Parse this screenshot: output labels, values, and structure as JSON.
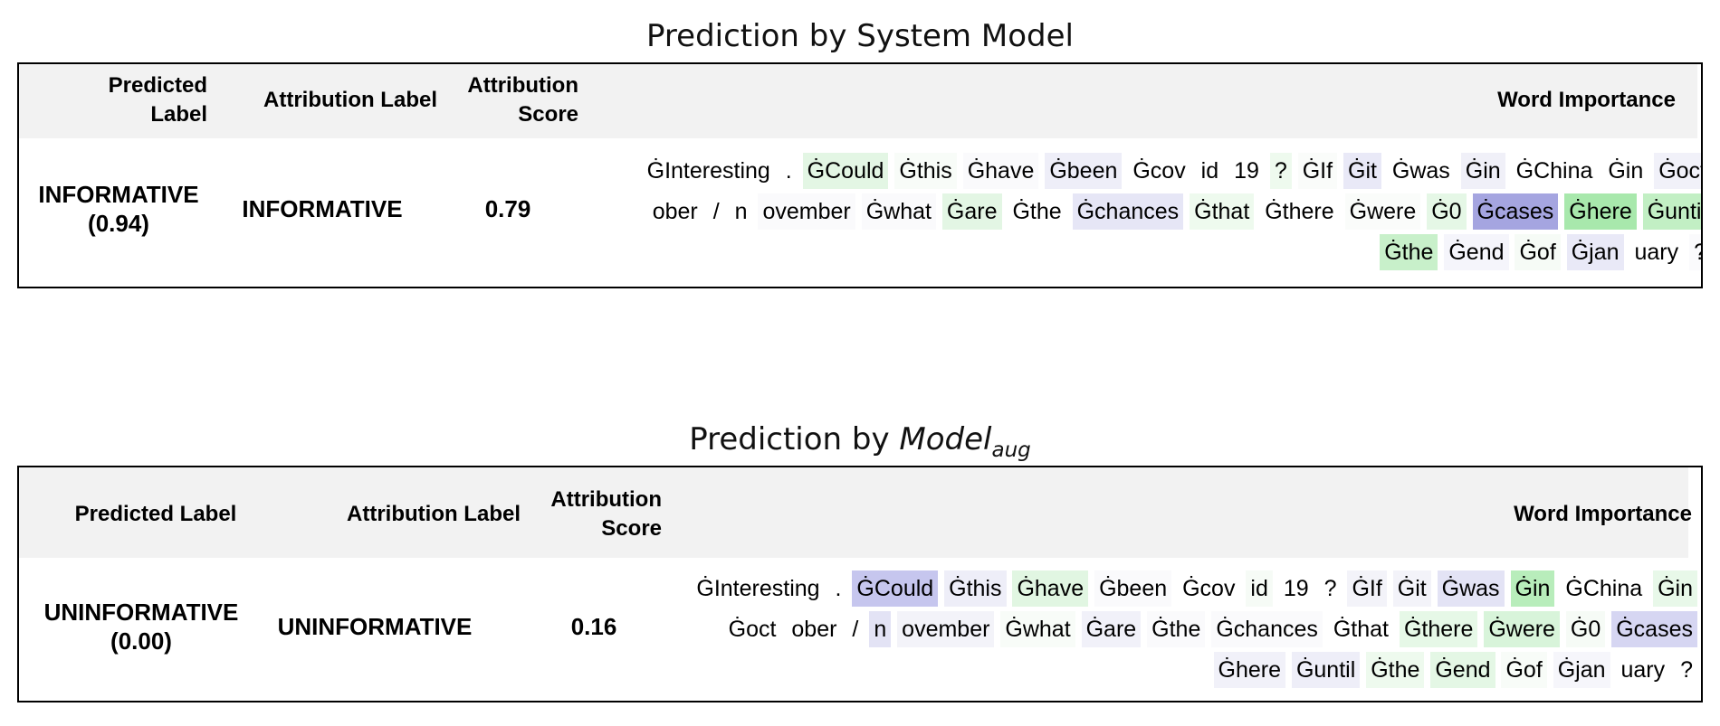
{
  "panels": [
    {
      "title_prefix": "Prediction by",
      "title_main": "System Model",
      "title_sub": "",
      "headers": {
        "predicted_label": "Predicted Label",
        "attribution_label": "Attribution Label",
        "attribution_score": "Attribution Score",
        "word_importance": "Word Importance"
      },
      "row": {
        "predicted_label": "INFORMATIVE",
        "predicted_prob": "(0.94)",
        "attribution_label": "INFORMATIVE",
        "attribution_score": "0.79"
      },
      "tokens": [
        {
          "text": "ĠInteresting",
          "color": "#ffffff"
        },
        {
          "text": ".",
          "color": "#ffffff"
        },
        {
          "text": "ĠCould",
          "color": "#e3f6e4"
        },
        {
          "text": "Ġthis",
          "color": "#f8fcf8"
        },
        {
          "text": "Ġhave",
          "color": "#fafafc"
        },
        {
          "text": "Ġbeen",
          "color": "#eeeef8"
        },
        {
          "text": "Ġcov",
          "color": "#ffffff"
        },
        {
          "text": "id",
          "color": "#ffffff"
        },
        {
          "text": "19",
          "color": "#ffffff"
        },
        {
          "text": "?",
          "color": "#eefaee"
        },
        {
          "text": "ĠIf",
          "color": "#fafcfa"
        },
        {
          "text": "Ġit",
          "color": "#e9e9f7"
        },
        {
          "text": "Ġwas",
          "color": "#ffffff"
        },
        {
          "text": "Ġin",
          "color": "#f0f0f8"
        },
        {
          "text": "ĠChina",
          "color": "#ffffff"
        },
        {
          "text": "Ġin",
          "color": "#ffffff"
        },
        {
          "text": "Ġoct",
          "color": "#f1f1f9"
        },
        {
          "text": "ober",
          "color": "#ffffff"
        },
        {
          "text": "/",
          "color": "#ffffff"
        },
        {
          "text": "n",
          "color": "#ffffff"
        },
        {
          "text": "ovember",
          "color": "#fafafc"
        },
        {
          "text": "Ġwhat",
          "color": "#fafafc"
        },
        {
          "text": "Ġare",
          "color": "#e3f6e4"
        },
        {
          "text": "Ġthe",
          "color": "#ffffff"
        },
        {
          "text": "Ġchances",
          "color": "#e6e6f6"
        },
        {
          "text": "Ġthat",
          "color": "#eefaee"
        },
        {
          "text": "Ġthere",
          "color": "#ffffff"
        },
        {
          "text": "Ġwere",
          "color": "#fafcfa"
        },
        {
          "text": "Ġ0",
          "color": "#e5f7e6"
        },
        {
          "text": "Ġcases",
          "color": "#a5a5e0"
        },
        {
          "text": "Ġhere",
          "color": "#a8e8ac"
        },
        {
          "text": "Ġuntil",
          "color": "#c2efc4"
        },
        {
          "text": "Ġthe",
          "color": "#c8f0ca"
        },
        {
          "text": "Ġend",
          "color": "#f5f5fb"
        },
        {
          "text": "Ġof",
          "color": "#f6fbf6"
        },
        {
          "text": "Ġjan",
          "color": "#e9e9f7"
        },
        {
          "text": "uary",
          "color": "#ffffff"
        },
        {
          "text": "?",
          "color": "#fafafc"
        }
      ]
    },
    {
      "title_prefix": "Prediction by",
      "title_main": "Model",
      "title_sub": "aug",
      "headers": {
        "predicted_label": "Predicted Label",
        "attribution_label": "Attribution Label",
        "attribution_score": "Attribution Score",
        "word_importance": "Word Importance"
      },
      "row": {
        "predicted_label": "UNINFORMATIVE",
        "predicted_prob": "(0.00)",
        "attribution_label": "UNINFORMATIVE",
        "attribution_score": "0.16"
      },
      "tokens": [
        {
          "text": "ĠInteresting",
          "color": "#ffffff"
        },
        {
          "text": ".",
          "color": "#ffffff"
        },
        {
          "text": "ĠCould",
          "color": "#c6c6ee"
        },
        {
          "text": "Ġthis",
          "color": "#eeeef8"
        },
        {
          "text": "Ġhave",
          "color": "#e1f6e2"
        },
        {
          "text": "Ġbeen",
          "color": "#fafafc"
        },
        {
          "text": "Ġcov",
          "color": "#ffffff"
        },
        {
          "text": "id",
          "color": "#f6fbf6"
        },
        {
          "text": "19",
          "color": "#ffffff"
        },
        {
          "text": "?",
          "color": "#ffffff"
        },
        {
          "text": "ĠIf",
          "color": "#f3f3f9"
        },
        {
          "text": "Ġit",
          "color": "#f3f3f9"
        },
        {
          "text": "Ġwas",
          "color": "#e3e3f5"
        },
        {
          "text": "Ġin",
          "color": "#b8edbb"
        },
        {
          "text": "ĠChina",
          "color": "#ffffff"
        },
        {
          "text": "Ġin",
          "color": "#e8f8e9"
        },
        {
          "text": "Ġoct",
          "color": "#ffffff"
        },
        {
          "text": "ober",
          "color": "#ffffff"
        },
        {
          "text": "/",
          "color": "#ffffff"
        },
        {
          "text": "n",
          "color": "#e3e3f5"
        },
        {
          "text": "ovember",
          "color": "#f3f3f9"
        },
        {
          "text": "Ġwhat",
          "color": "#f8fcf8"
        },
        {
          "text": "Ġare",
          "color": "#f1f1f9"
        },
        {
          "text": "Ġthe",
          "color": "#fafafc"
        },
        {
          "text": "Ġchances",
          "color": "#fafafc"
        },
        {
          "text": "Ġthat",
          "color": "#ffffff"
        },
        {
          "text": "Ġthere",
          "color": "#e6f8e7"
        },
        {
          "text": "Ġwere",
          "color": "#d8f4da"
        },
        {
          "text": "Ġ0",
          "color": "#f6fbf6"
        },
        {
          "text": "Ġcases",
          "color": "#d6d6f2"
        },
        {
          "text": "Ġhere",
          "color": "#f1f1f9"
        },
        {
          "text": "Ġuntil",
          "color": "#eeeef8"
        },
        {
          "text": "Ġthe",
          "color": "#eefaee"
        },
        {
          "text": "Ġend",
          "color": "#e4f7e5"
        },
        {
          "text": "Ġof",
          "color": "#f8fcf8"
        },
        {
          "text": "Ġjan",
          "color": "#f6f6fb"
        },
        {
          "text": "uary",
          "color": "#ffffff"
        },
        {
          "text": "?",
          "color": "#ffffff"
        }
      ]
    }
  ]
}
